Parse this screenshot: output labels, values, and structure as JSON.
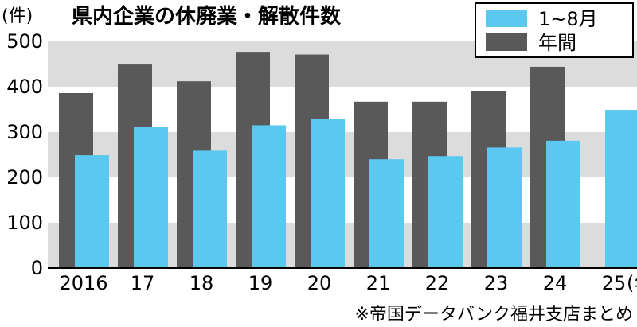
{
  "chart_data": {
    "type": "bar",
    "title": "県内企業の休廃業・解散件数",
    "ylabel": "(件)",
    "xlabel": "(年)",
    "categories": [
      "2016",
      "17",
      "18",
      "19",
      "20",
      "21",
      "22",
      "23",
      "24",
      "25"
    ],
    "series": [
      {
        "name": "年間",
        "color": "#595959",
        "values": [
          386,
          449,
          412,
          477,
          471,
          367,
          367,
          390,
          444,
          null
        ]
      },
      {
        "name": "1~8月",
        "color": "#5bc8f0",
        "values": [
          249,
          312,
          259,
          315,
          329,
          240,
          247,
          266,
          281,
          349
        ]
      }
    ],
    "ylim": [
      0,
      500
    ],
    "yticks": [
      "0",
      "100",
      "200",
      "300",
      "400",
      "500"
    ],
    "grid": "alternating bands",
    "legend_position": "top-right",
    "source": "※帝国データバンク福井支店まとめ"
  }
}
